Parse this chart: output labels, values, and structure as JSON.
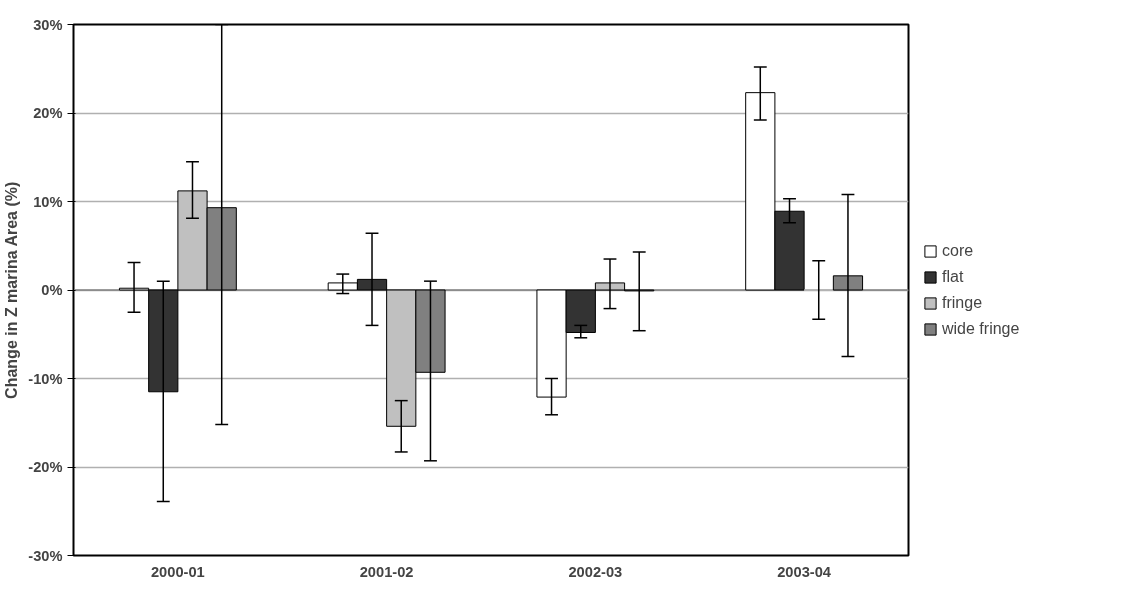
{
  "chart_data": {
    "type": "bar",
    "ylabel": "Change in Z marina Area (%)",
    "categories": [
      "2000-01",
      "2001-02",
      "2002-03",
      "2003-04"
    ],
    "series": [
      {
        "name": "core",
        "color": "#ffffff",
        "values": [
          0.2,
          0.8,
          -12.1,
          22.3
        ],
        "errors": [
          [
            -2.5,
            3.1
          ],
          [
            -0.4,
            1.8
          ],
          [
            -14.1,
            -10.0
          ],
          [
            19.2,
            25.2
          ]
        ]
      },
      {
        "name": "flat",
        "color": "#333333",
        "values": [
          -11.5,
          1.2,
          -4.8,
          8.9
        ],
        "errors": [
          [
            -23.9,
            1.0
          ],
          [
            -4.0,
            6.4
          ],
          [
            -5.4,
            -4.0
          ],
          [
            7.6,
            10.3
          ]
        ]
      },
      {
        "name": "fringe",
        "color": "#c0c0c0",
        "values": [
          11.2,
          -15.4,
          0.8,
          0.0
        ],
        "errors": [
          [
            8.1,
            14.5
          ],
          [
            -18.3,
            -12.5
          ],
          [
            -2.1,
            3.5
          ],
          [
            -3.3,
            3.3
          ]
        ]
      },
      {
        "name": "wide fringe",
        "color": "#808080",
        "values": [
          9.3,
          -9.3,
          -0.1,
          1.6
        ],
        "errors": [
          [
            -15.2,
            30.0
          ],
          [
            -19.3,
            1.0
          ],
          [
            -4.6,
            4.3
          ],
          [
            -7.5,
            10.8
          ]
        ]
      }
    ],
    "ylim": [
      -30,
      30
    ],
    "yticks": [
      {
        "value": -30,
        "label": "-30%"
      },
      {
        "value": -20,
        "label": "-20%"
      },
      {
        "value": -10,
        "label": "-10%"
      },
      {
        "value": 0,
        "label": "0%"
      },
      {
        "value": 10,
        "label": "10%"
      },
      {
        "value": 20,
        "label": "20%"
      },
      {
        "value": 30,
        "label": "30%"
      }
    ],
    "grid": "y",
    "legend": "right"
  }
}
